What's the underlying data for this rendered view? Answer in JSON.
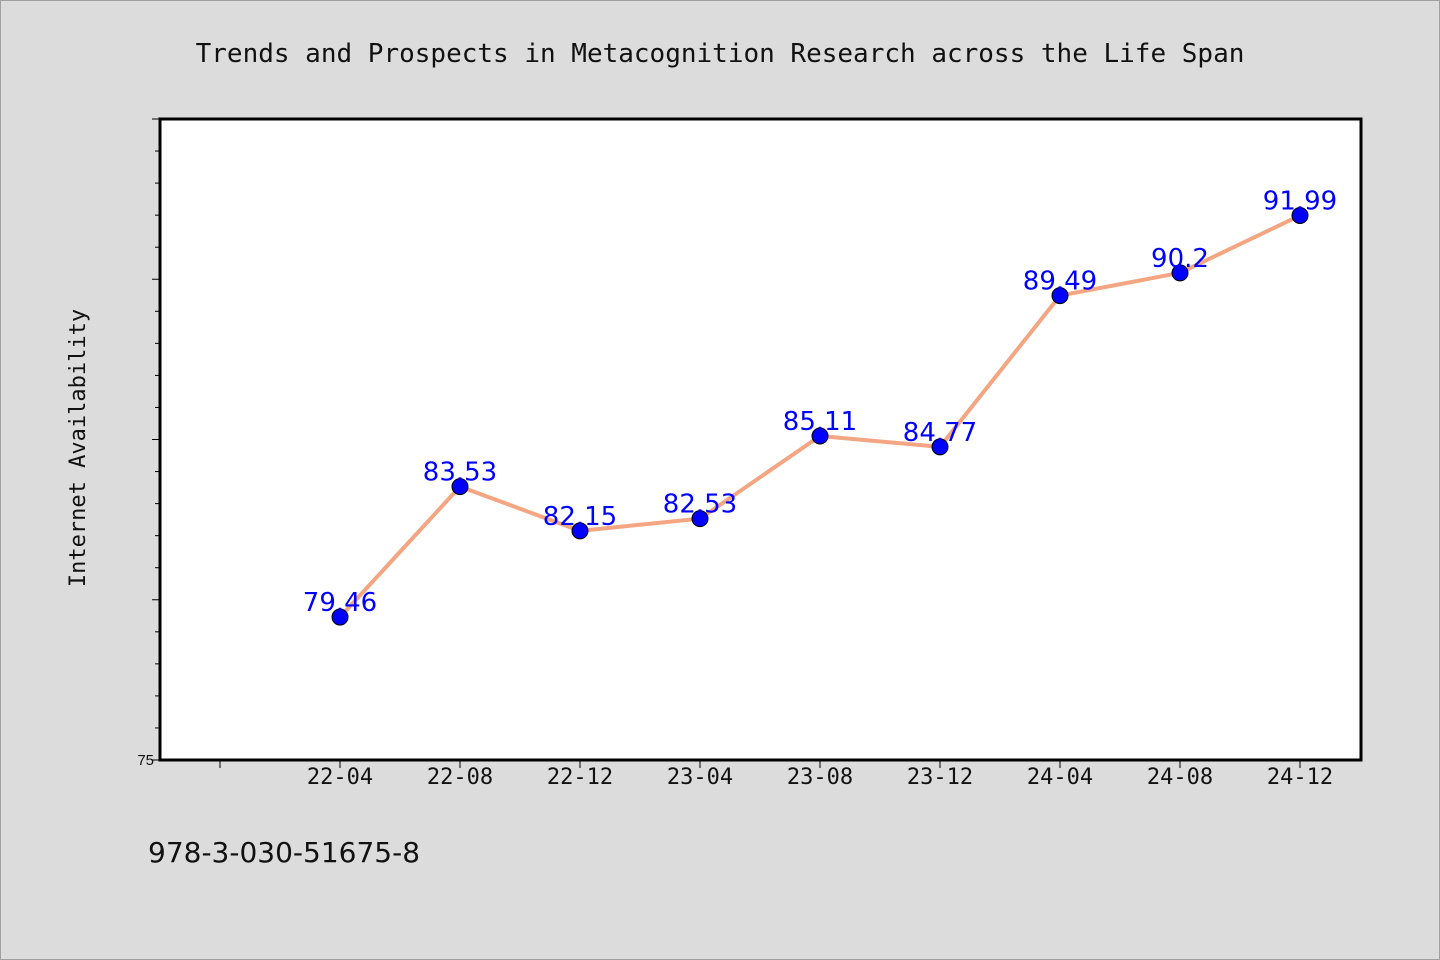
{
  "footer_text": "978-3-030-51675-8",
  "colors": {
    "background": "#dcdcdc",
    "plot_background": "#ffffff",
    "line": "#f4a582",
    "marker": "#0000ff",
    "label": "#0000ff"
  },
  "chart_data": {
    "type": "line",
    "title": "Trends and Prospects in Metacognition Research across the Life Span",
    "xlabel": "",
    "ylabel": "Internet Availability",
    "categories": [
      "22-04",
      "22-08",
      "22-12",
      "23-04",
      "23-08",
      "23-12",
      "24-04",
      "24-08",
      "24-12"
    ],
    "series": [
      {
        "values": [
          79.46,
          83.53,
          82.15,
          82.53,
          85.11,
          84.77,
          89.49,
          90.2,
          91.99
        ]
      }
    ],
    "ylim": [
      75,
      95
    ],
    "ytick_labels": [
      "75"
    ],
    "grid": false,
    "legend": "none"
  }
}
